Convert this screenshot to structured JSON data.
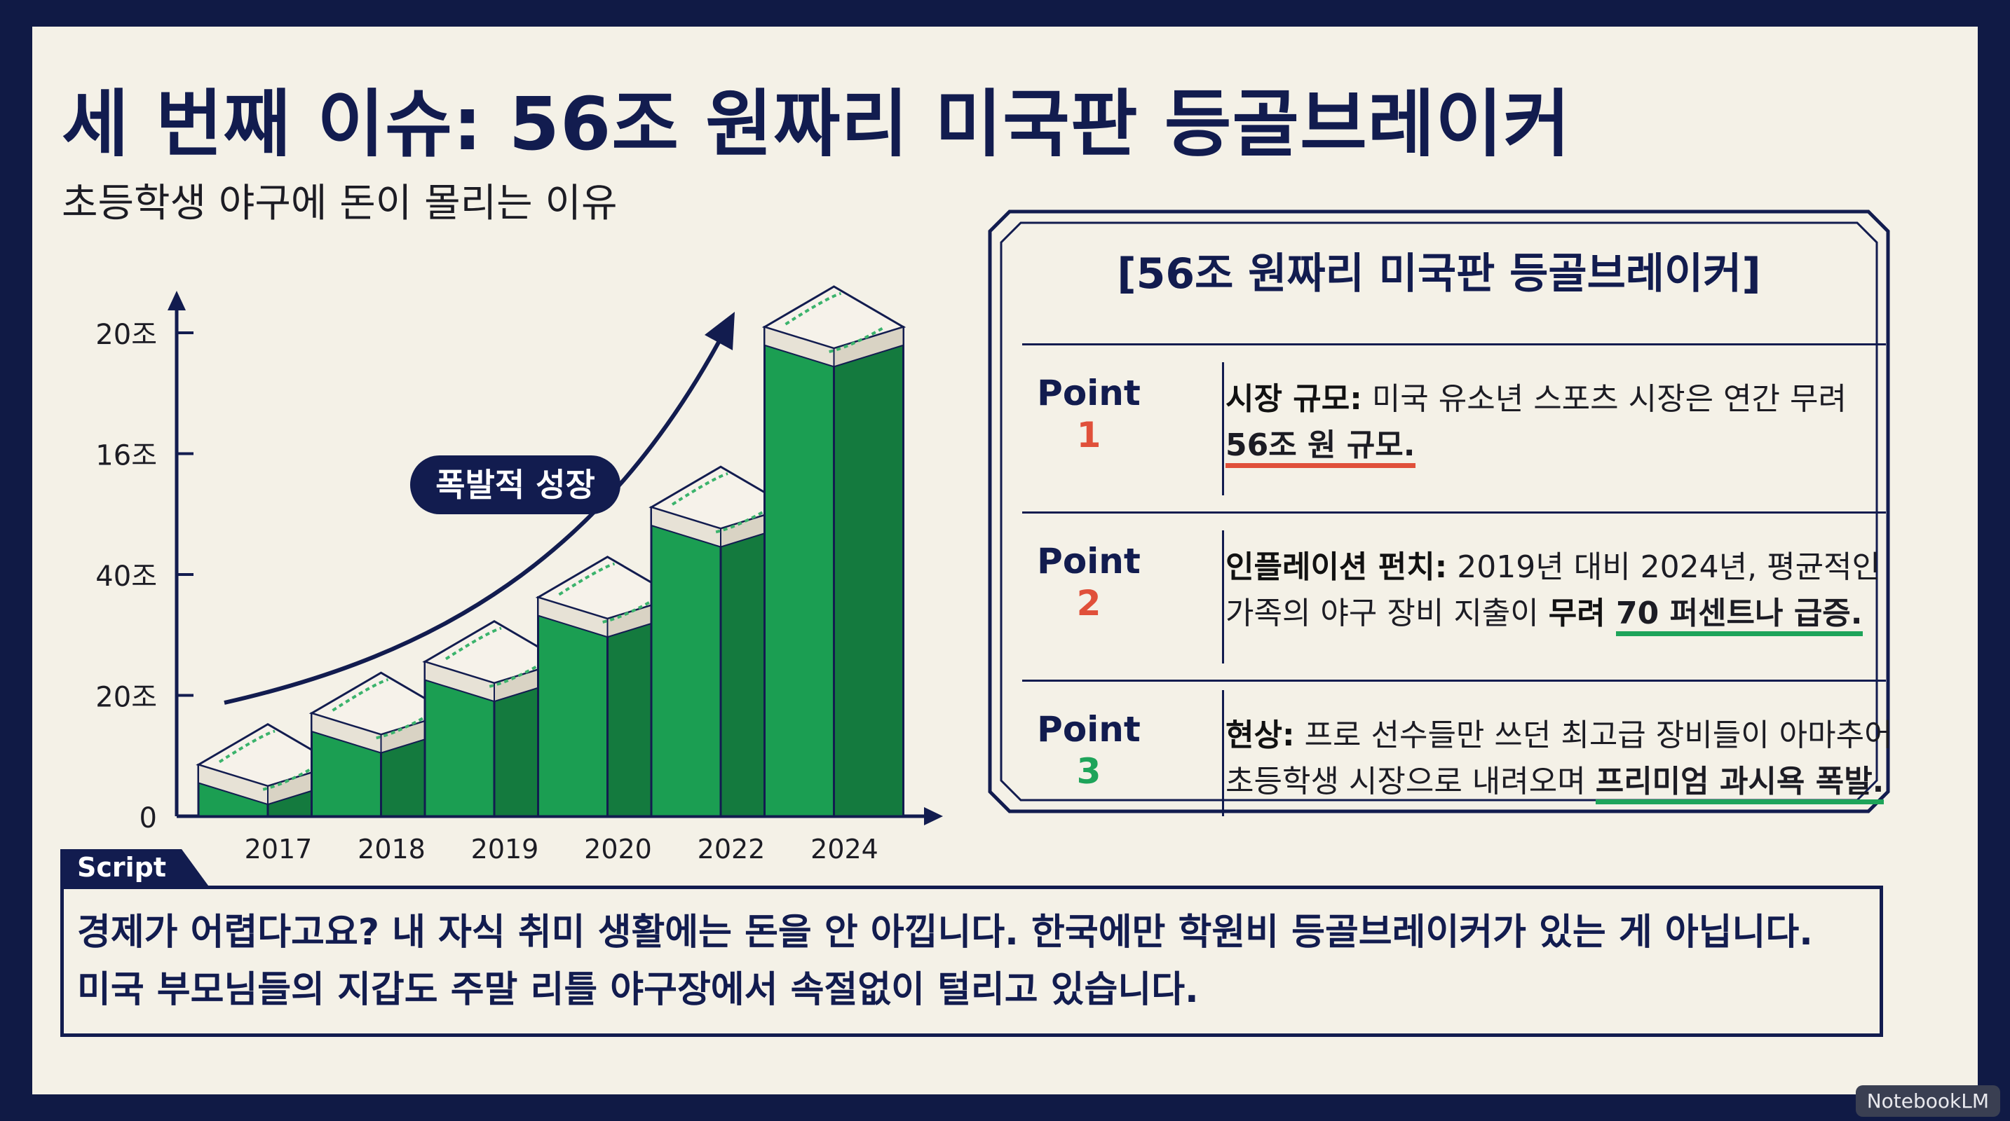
{
  "slide": {
    "title": "세 번째 이슈: 56조 원짜리 미국판 등골브레이커",
    "subtitle": "초등학생 야구에 돈이 몰리는 이유"
  },
  "chart_data": {
    "type": "bar",
    "title": "",
    "xlabel": "",
    "ylabel": "",
    "categories": [
      "2017",
      "2018",
      "2019",
      "2020",
      "2022",
      "2024"
    ],
    "values": [
      4,
      8,
      12,
      17,
      24,
      38
    ],
    "ytick_labels": [
      "0",
      "20조",
      "40조",
      "16조",
      "20조"
    ],
    "annotation": "폭발적 성장",
    "colors": {
      "bar": "#1b9e52",
      "bar_dark": "#147a3e",
      "axis": "#121c4f",
      "ball": "#f6f2ea",
      "stitch": "#3bb36c"
    }
  },
  "panel": {
    "title": "[56조 원짜리 미국판 등골브레이커]",
    "point_word": "Point",
    "points": [
      {
        "num": "1",
        "num_color": "#e0503a",
        "lead": "시장 규모:",
        "text": " 미국 유소년 스포츠 시장은 연간 무려 ",
        "highlight": "56조 원 규모.",
        "tail": ""
      },
      {
        "num": "2",
        "num_color": "#e0503a",
        "lead": "인플레이션 펀치:",
        "text": " 2019년 대비 2024년, 평균적인 가족의 야구 장비 지출이 ",
        "highlight_pre": "무려 ",
        "highlight": "70 퍼센트나 급증.",
        "tail": ""
      },
      {
        "num": "3",
        "num_color": "#1ea45a",
        "lead": "현상:",
        "text": " 프로 선수들만 쓰던 최고급 장비들이 아마추어 초등학생 시장으로 내려오며 ",
        "highlight": "프리미엄 과시욕 폭발.",
        "tail": ""
      }
    ]
  },
  "script": {
    "label": "Script",
    "lines": [
      "경제가 어렵다고요? 내 자식 취미 생활에는 돈을 안 아낍니다. 한국에만 학원비 등골브레이커가 있는 게 아닙니다.",
      "미국 부모님들의 지갑도 주말 리틀 야구장에서 속절없이 털리고 있습니다."
    ]
  },
  "badge": "NotebookLM"
}
